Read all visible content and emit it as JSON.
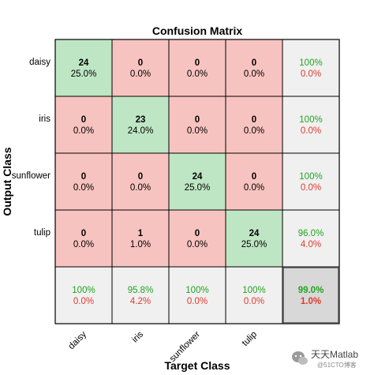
{
  "chart_data": {
    "type": "heatmap",
    "title": "Confusion Matrix",
    "xlabel": "Target Class",
    "ylabel": "Output Class",
    "classes": [
      "daisy",
      "iris",
      "sunflower",
      "tulip"
    ],
    "counts": [
      [
        24,
        0,
        0,
        0
      ],
      [
        0,
        23,
        0,
        0
      ],
      [
        0,
        0,
        24,
        0
      ],
      [
        0,
        1,
        0,
        24
      ]
    ],
    "cell_percents": [
      [
        "25.0%",
        "0.0%",
        "0.0%",
        "0.0%"
      ],
      [
        "0.0%",
        "24.0%",
        "0.0%",
        "0.0%"
      ],
      [
        "0.0%",
        "0.0%",
        "25.0%",
        "0.0%"
      ],
      [
        "0.0%",
        "1.0%",
        "0.0%",
        "25.0%"
      ]
    ],
    "row_summary": [
      {
        "correct": "100%",
        "wrong": "0.0%"
      },
      {
        "correct": "100%",
        "wrong": "0.0%"
      },
      {
        "correct": "100%",
        "wrong": "0.0%"
      },
      {
        "correct": "96.0%",
        "wrong": "4.0%"
      }
    ],
    "col_summary": [
      {
        "correct": "100%",
        "wrong": "0.0%"
      },
      {
        "correct": "95.8%",
        "wrong": "4.2%"
      },
      {
        "correct": "100%",
        "wrong": "0.0%"
      },
      {
        "correct": "100%",
        "wrong": "0.0%"
      }
    ],
    "overall": {
      "correct": "99.0%",
      "wrong": "1.0%"
    },
    "colors": {
      "diagonal": "#bfe6c4",
      "off_diagonal": "#f7c3c0",
      "summary": "#f0f0f0",
      "overall": "#d8d8d8",
      "correct_text": "#1fa51f",
      "wrong_text": "#e03a2f"
    }
  },
  "watermark": {
    "line1": "天天Matlab",
    "line2": "@51CTO博客",
    "icon": "wechat-icon"
  }
}
